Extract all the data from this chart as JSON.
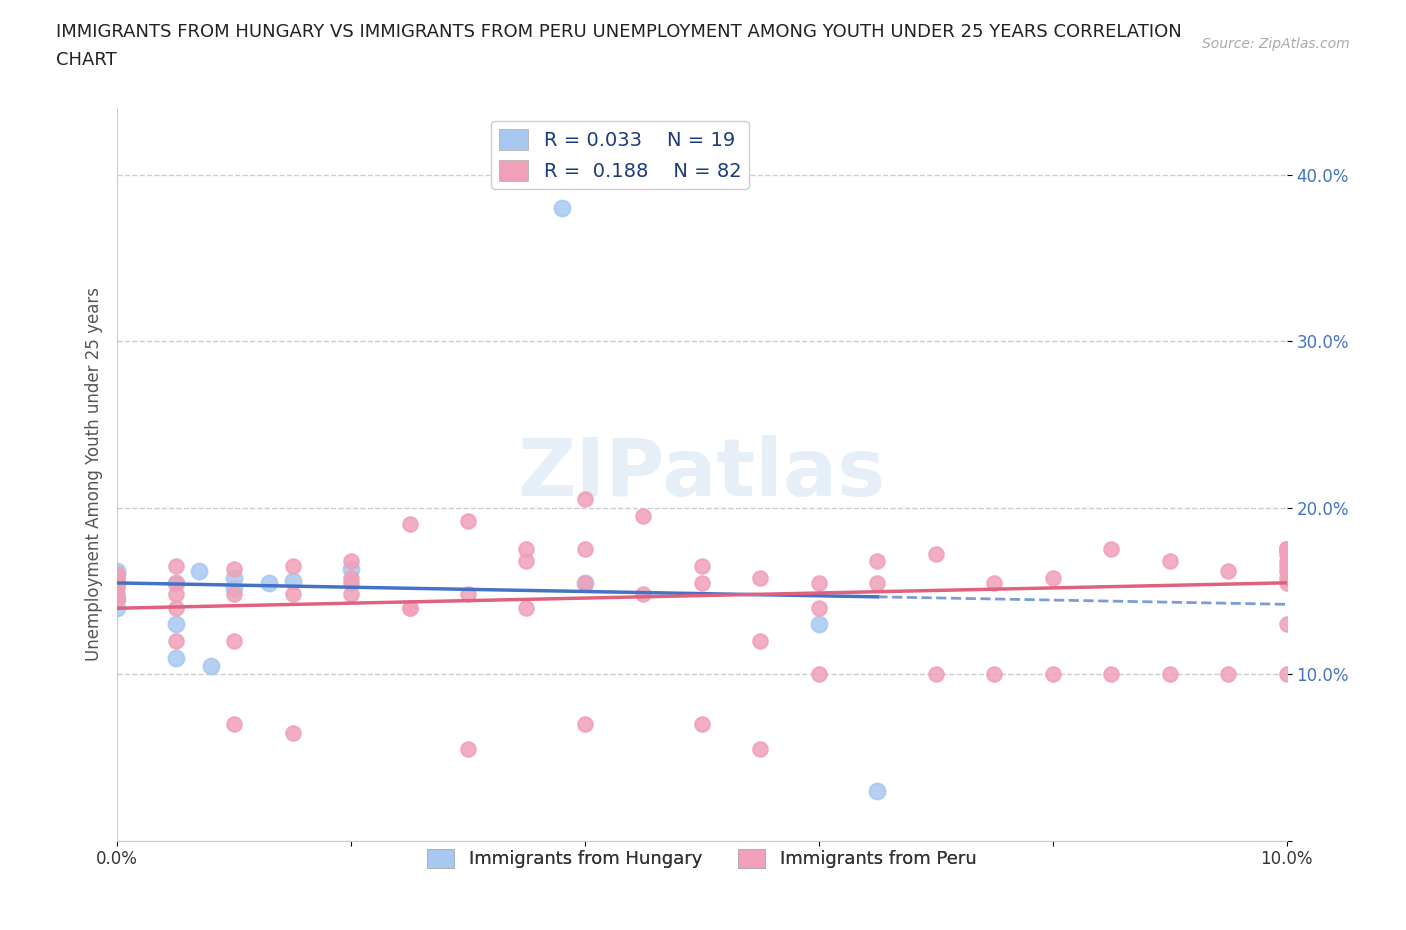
{
  "title_line1": "IMMIGRANTS FROM HUNGARY VS IMMIGRANTS FROM PERU UNEMPLOYMENT AMONG YOUTH UNDER 25 YEARS CORRELATION",
  "title_line2": "CHART",
  "source": "Source: ZipAtlas.com",
  "ylabel": "Unemployment Among Youth under 25 years",
  "xlim": [
    0.0,
    0.1
  ],
  "ylim": [
    0.0,
    0.44
  ],
  "hungary_R": 0.033,
  "hungary_N": 19,
  "peru_R": 0.188,
  "peru_N": 82,
  "hungary_color": "#a8c8f0",
  "peru_color": "#f0a0b8",
  "hungary_line_color": "#4472c4",
  "peru_line_color": "#e06080",
  "background_color": "#ffffff",
  "hungary_x": [
    0.0,
    0.0,
    0.0,
    0.0,
    0.0,
    0.005,
    0.005,
    0.005,
    0.007,
    0.008,
    0.01,
    0.01,
    0.013,
    0.015,
    0.02,
    0.038,
    0.04,
    0.06,
    0.065
  ],
  "hungary_y": [
    0.14,
    0.155,
    0.16,
    0.162,
    0.145,
    0.11,
    0.13,
    0.155,
    0.162,
    0.105,
    0.152,
    0.158,
    0.155,
    0.156,
    0.163,
    0.38,
    0.155,
    0.13,
    0.03
  ],
  "peru_x": [
    0.0,
    0.0,
    0.0,
    0.0,
    0.0,
    0.0,
    0.005,
    0.005,
    0.005,
    0.005,
    0.005,
    0.01,
    0.01,
    0.01,
    0.01,
    0.015,
    0.015,
    0.015,
    0.02,
    0.02,
    0.02,
    0.02,
    0.025,
    0.025,
    0.025,
    0.03,
    0.03,
    0.03,
    0.035,
    0.035,
    0.035,
    0.04,
    0.04,
    0.04,
    0.04,
    0.045,
    0.045,
    0.05,
    0.05,
    0.05,
    0.055,
    0.055,
    0.055,
    0.06,
    0.06,
    0.06,
    0.065,
    0.065,
    0.07,
    0.07,
    0.075,
    0.075,
    0.08,
    0.08,
    0.085,
    0.085,
    0.09,
    0.09,
    0.095,
    0.095,
    0.1,
    0.1,
    0.1,
    0.1,
    0.1,
    0.1,
    0.1,
    0.1,
    0.1,
    0.1,
    0.1,
    0.1,
    0.1,
    0.1,
    0.1,
    0.1,
    0.1,
    0.1,
    0.1,
    0.1,
    0.1,
    0.1
  ],
  "peru_y": [
    0.145,
    0.148,
    0.152,
    0.155,
    0.157,
    0.16,
    0.12,
    0.14,
    0.148,
    0.155,
    0.165,
    0.07,
    0.12,
    0.148,
    0.163,
    0.065,
    0.148,
    0.165,
    0.148,
    0.155,
    0.158,
    0.168,
    0.14,
    0.14,
    0.19,
    0.055,
    0.148,
    0.192,
    0.14,
    0.168,
    0.175,
    0.155,
    0.175,
    0.205,
    0.07,
    0.148,
    0.195,
    0.07,
    0.155,
    0.165,
    0.055,
    0.12,
    0.158,
    0.1,
    0.14,
    0.155,
    0.155,
    0.168,
    0.1,
    0.172,
    0.1,
    0.155,
    0.1,
    0.158,
    0.1,
    0.175,
    0.1,
    0.168,
    0.1,
    0.162,
    0.1,
    0.13,
    0.155,
    0.158,
    0.162,
    0.165,
    0.168,
    0.172,
    0.175,
    0.175,
    0.175,
    0.175,
    0.175,
    0.175,
    0.175,
    0.175,
    0.175,
    0.175,
    0.175,
    0.175,
    0.175,
    0.175
  ]
}
